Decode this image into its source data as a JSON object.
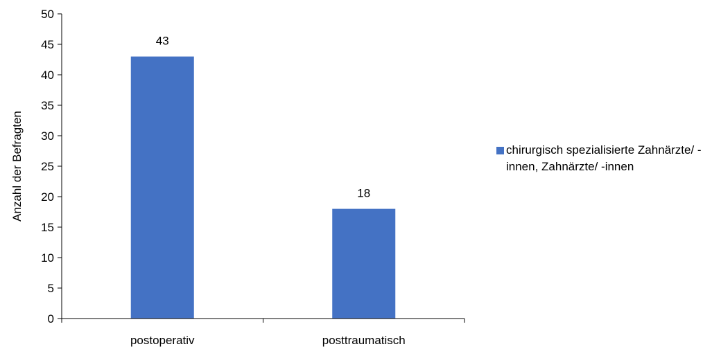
{
  "chart_data": {
    "type": "bar",
    "categories": [
      "postoperativ",
      "posttraumatisch"
    ],
    "series": [
      {
        "name": "chirurgisch spezialisierte Zahnärzte/ -innen, Zahnärzte/ -innen",
        "values": [
          43,
          18
        ],
        "color": "#4472C4"
      }
    ],
    "data_labels": [
      "43",
      "18"
    ],
    "ylabel": "Anzahl der Befragten",
    "xlabel": "",
    "ylim": [
      0,
      50
    ],
    "yticks": [
      0,
      5,
      10,
      15,
      20,
      25,
      30,
      35,
      40,
      45,
      50
    ],
    "grid": false,
    "legend_position": "right"
  }
}
